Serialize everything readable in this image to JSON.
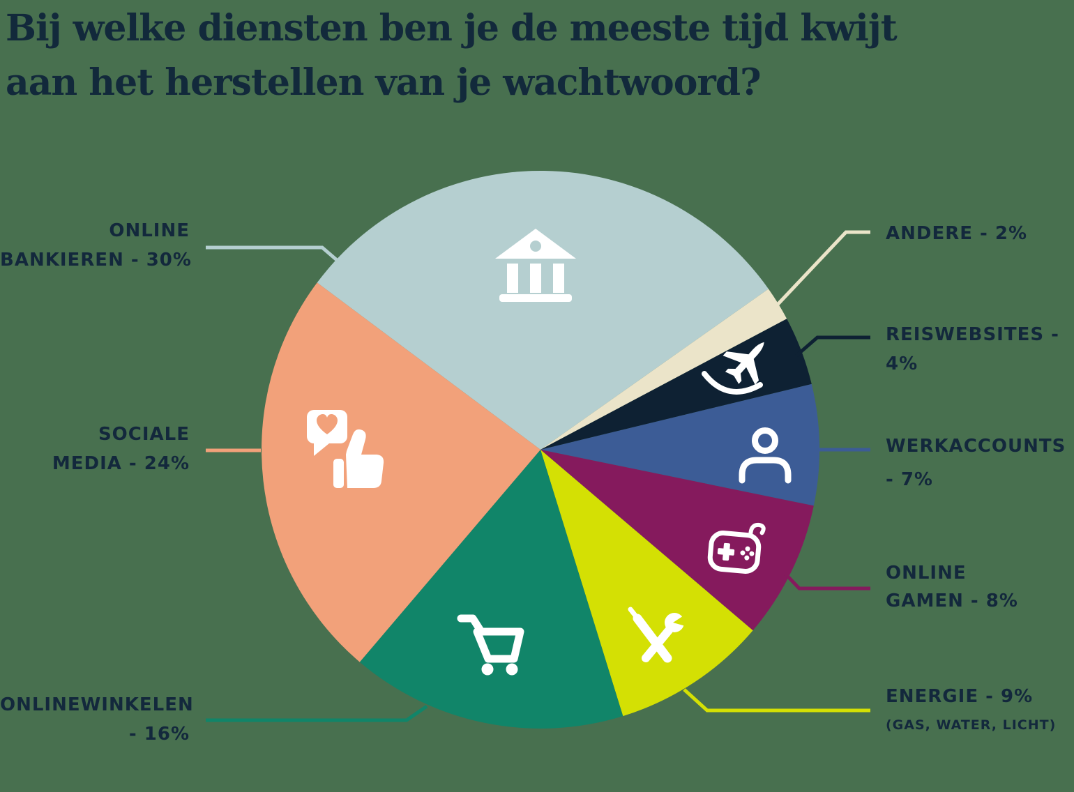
{
  "background_color": "#48704F",
  "title_color": "#12293B",
  "label_color": "#13283C",
  "icon_color": "#FFFFFF",
  "title": {
    "lines": [
      "Bij welke diensten ben je de meeste tijd kwijt",
      "aan het herstellen van je wachtwoord?"
    ]
  },
  "chart_data": {
    "type": "pie",
    "title": "Bij welke diensten ben je de meeste tijd kwijt aan het herstellen van je wachtwoord?",
    "unit": "%",
    "start_angle_deg": 143.2,
    "direction": "clockwise",
    "legend_position": "callout-labels",
    "slices": [
      {
        "id": "online-bankieren",
        "name": "Online bankieren",
        "value": 30,
        "color": "#B5CFD0",
        "icon": "bank-icon",
        "label_side": "left",
        "label_lines": [
          "ONLINE",
          "BANKIEREN - 30%"
        ]
      },
      {
        "id": "andere",
        "name": "Andere",
        "value": 2,
        "color": "#EBE4C9",
        "icon": null,
        "label_side": "right",
        "label_lines": [
          "ANDERE - 2%"
        ]
      },
      {
        "id": "reiswebsites",
        "name": "Reiswebsites",
        "value": 4,
        "color": "#0E2133",
        "icon": "plane-icon",
        "label_side": "right",
        "label_lines": [
          "REISWEBSITES -",
          "4%"
        ]
      },
      {
        "id": "werkaccounts",
        "name": "Werkaccounts",
        "value": 7,
        "color": "#3C5C96",
        "icon": "person-icon",
        "label_side": "right",
        "label_lines": [
          "WERKACCOUNTS",
          "- 7%"
        ]
      },
      {
        "id": "online-gamen",
        "name": "Online gamen",
        "value": 8,
        "color": "#851A5D",
        "icon": "gamepad-icon",
        "label_side": "right",
        "label_lines": [
          "ONLINE",
          "GAMEN - 8%"
        ]
      },
      {
        "id": "energie",
        "name": "Energie (gas, water, licht)",
        "value": 9,
        "color": "#D4E004",
        "icon": "tools-icon",
        "label_side": "right",
        "label_lines": [
          "ENERGIE - 9%",
          "(GAS, WATER, LICHT)"
        ]
      },
      {
        "id": "onlinewinkelen",
        "name": "Onlinewinkelen",
        "value": 16,
        "color": "#118569",
        "icon": "cart-icon",
        "label_side": "left",
        "label_lines": [
          "ONLINEWINKELEN",
          "- 16%"
        ]
      },
      {
        "id": "sociale-media",
        "name": "Sociale media",
        "value": 24,
        "color": "#F2A17A",
        "icon": "social-icon",
        "label_side": "left",
        "label_lines": [
          "SOCIALE",
          "MEDIA - 24%"
        ]
      }
    ]
  }
}
